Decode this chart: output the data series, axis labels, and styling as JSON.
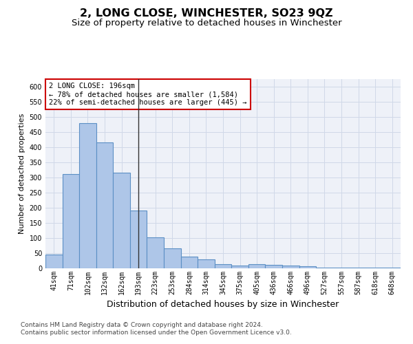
{
  "title": "2, LONG CLOSE, WINCHESTER, SO23 9QZ",
  "subtitle": "Size of property relative to detached houses in Winchester",
  "xlabel": "Distribution of detached houses by size in Winchester",
  "ylabel": "Number of detached properties",
  "categories": [
    "41sqm",
    "71sqm",
    "102sqm",
    "132sqm",
    "162sqm",
    "193sqm",
    "223sqm",
    "253sqm",
    "284sqm",
    "314sqm",
    "345sqm",
    "375sqm",
    "405sqm",
    "436sqm",
    "466sqm",
    "496sqm",
    "527sqm",
    "557sqm",
    "587sqm",
    "618sqm",
    "648sqm"
  ],
  "values": [
    45,
    312,
    480,
    415,
    315,
    190,
    102,
    65,
    38,
    30,
    13,
    10,
    13,
    12,
    10,
    6,
    3,
    3,
    2,
    3,
    3
  ],
  "bar_color": "#aec6e8",
  "bar_edge_color": "#5b8fc4",
  "bar_edge_width": 0.8,
  "highlight_bar_index": 5,
  "marker_line_color": "#333333",
  "ylim": [
    0,
    625
  ],
  "yticks": [
    0,
    50,
    100,
    150,
    200,
    250,
    300,
    350,
    400,
    450,
    500,
    550,
    600
  ],
  "grid_color": "#d0d8e8",
  "background_color": "#eef1f8",
  "annotation_text": "2 LONG CLOSE: 196sqm\n← 78% of detached houses are smaller (1,584)\n22% of semi-detached houses are larger (445) →",
  "annotation_box_color": "#ffffff",
  "annotation_box_edge_color": "#cc0000",
  "footer_line1": "Contains HM Land Registry data © Crown copyright and database right 2024.",
  "footer_line2": "Contains public sector information licensed under the Open Government Licence v3.0.",
  "title_fontsize": 11.5,
  "subtitle_fontsize": 9.5,
  "xlabel_fontsize": 9,
  "ylabel_fontsize": 8,
  "tick_fontsize": 7,
  "annotation_fontsize": 7.5,
  "footer_fontsize": 6.5
}
